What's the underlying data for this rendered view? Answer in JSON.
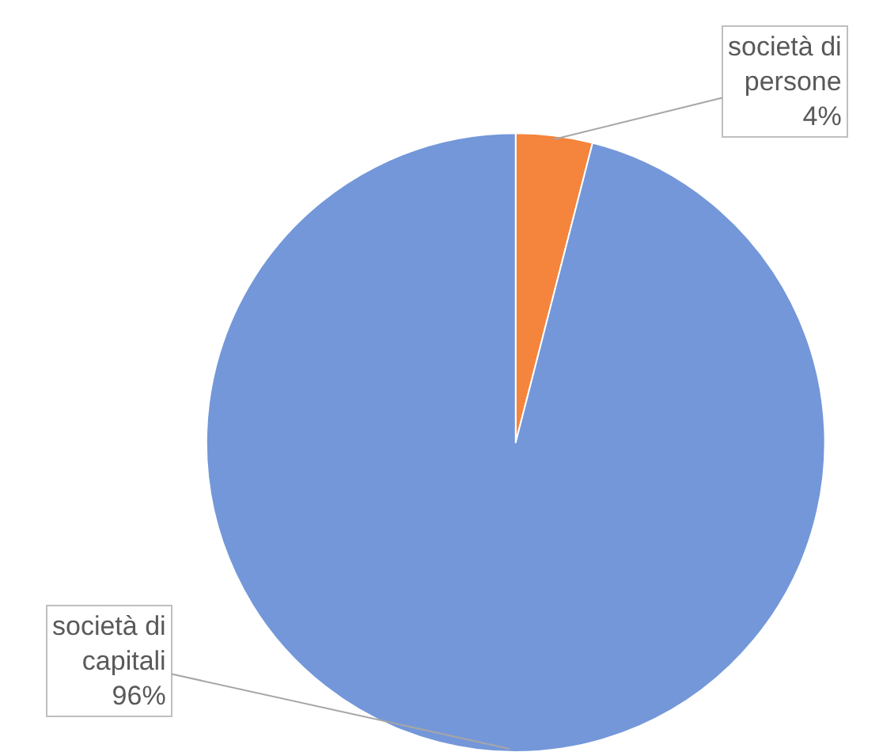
{
  "chart_data": {
    "type": "pie",
    "categories": [
      "società di persone",
      "società di capitali"
    ],
    "values": [
      4,
      96
    ],
    "value_labels": [
      "4%",
      "96%"
    ],
    "colors": [
      "#f5843c",
      "#7397d9"
    ],
    "legend": false
  }
}
